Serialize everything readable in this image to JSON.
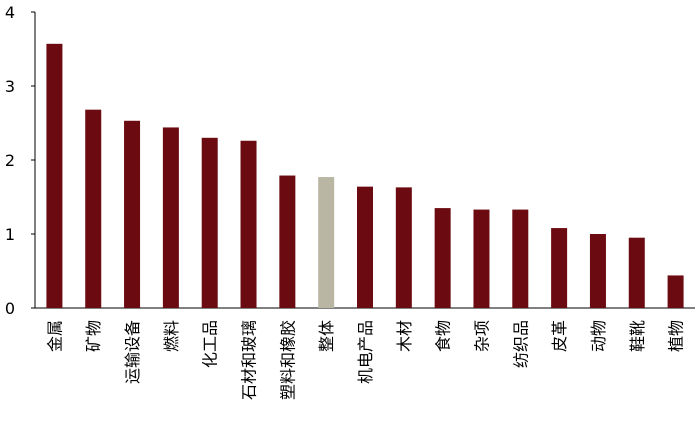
{
  "chart_data": {
    "type": "bar",
    "title": "",
    "xlabel": "",
    "ylabel": "",
    "ylim": [
      0,
      4
    ],
    "yticks": [
      0,
      1,
      2,
      3,
      4
    ],
    "grid": false,
    "categories": [
      "金属",
      "矿物",
      "运输设备",
      "燃料",
      "化工品",
      "石材和玻璃",
      "塑料和橡胶",
      "整体",
      "机电产品",
      "木材",
      "食物",
      "杂项",
      "纺织品",
      "皮革",
      "动物",
      "鞋靴",
      "植物"
    ],
    "values": [
      3.57,
      2.68,
      2.53,
      2.44,
      2.3,
      2.26,
      1.79,
      1.77,
      1.64,
      1.63,
      1.35,
      1.33,
      1.33,
      1.08,
      1.0,
      0.95,
      0.44
    ],
    "colors": {
      "bar": "#6b0a10",
      "highlight": "#b9b7a4",
      "axis": "#000000"
    },
    "highlight_category": "整体"
  }
}
